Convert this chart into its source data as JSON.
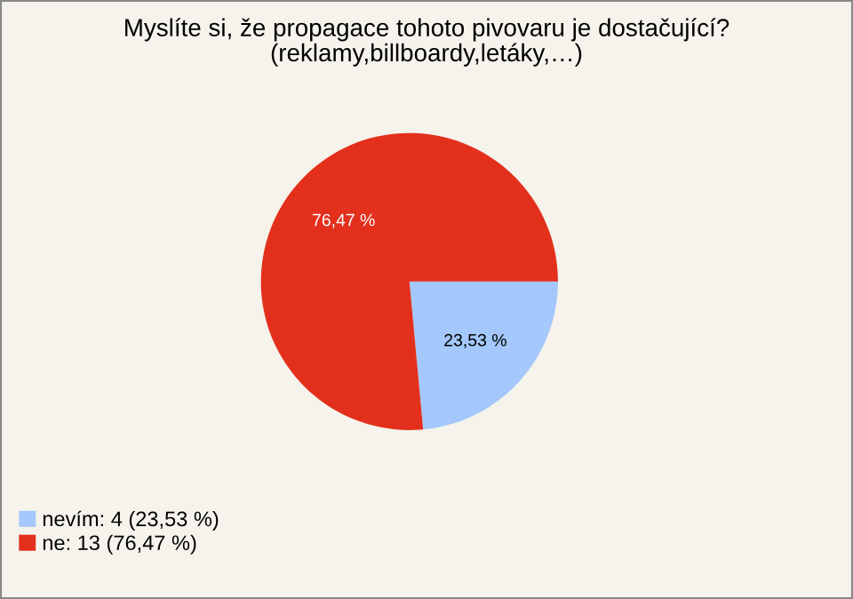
{
  "chart_data": {
    "type": "pie",
    "title": "Myslíte si, že propagace tohoto pivovaru je dostačující?\n(reklamy,billboardy,letáky,…)",
    "categories": [
      "nevím: 4 (23,53 %)",
      "ne: 13 (76,47 %)"
    ],
    "values": [
      23.53,
      76.47
    ],
    "colors": [
      "#a4c8fb",
      "#e3301c"
    ],
    "value_labels": [
      "23,53 %",
      "76,47 %"
    ],
    "legend": "bottom left"
  }
}
